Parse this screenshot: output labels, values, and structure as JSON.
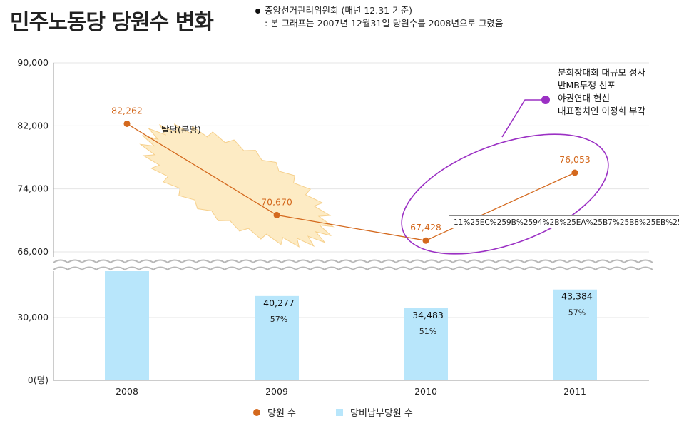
{
  "title": "민주노동당 당원수 변화",
  "note": {
    "line1": "중앙선거관리위원회 (매년 12.31 기준)",
    "line2": ": 본 그래프는 2007년 12월31일 당원수를 2008년으로 그렸음"
  },
  "tooltip": "11%25EC%259B%2594%2B%25EA%25B7%25B8%25EB%25",
  "annotations": {
    "split": "탈당(분당)",
    "events": [
      "분회장대회 대규모 성사",
      "반MB투쟁 선포",
      "야권연대 헌신",
      "대표정치인 이정희 부각"
    ]
  },
  "legend": {
    "members": "당원 수",
    "dues": "당비납부당원 수"
  },
  "colors": {
    "line": "#d4691e",
    "bar": "#b8e6fb",
    "ellipse": "#9b30c4",
    "burst": "#fdebc4"
  },
  "chart_data": {
    "type": "bar+line",
    "categories": [
      "2008",
      "2009",
      "2010",
      "2011"
    ],
    "upper_axis": {
      "ticks": [
        "66,000",
        "74,000",
        "82,000",
        "90,000"
      ],
      "range": [
        66000,
        90000
      ]
    },
    "lower_axis": {
      "ticks": [
        "0(명)",
        "30,000"
      ],
      "range": [
        0,
        60000
      ]
    },
    "series": [
      {
        "name": "당원 수",
        "kind": "line",
        "values": [
          82262,
          70670,
          67428,
          76053
        ],
        "labels": [
          "82,262",
          "70,670",
          "67,428",
          "76,053"
        ]
      },
      {
        "name": "당비납부당원 수",
        "kind": "bar",
        "values": [
          54000,
          40277,
          34483,
          43384
        ],
        "labels": [
          "",
          "40,277",
          "34,483",
          "43,384"
        ],
        "percent": [
          "",
          "57%",
          "51%",
          "57%"
        ]
      }
    ]
  }
}
